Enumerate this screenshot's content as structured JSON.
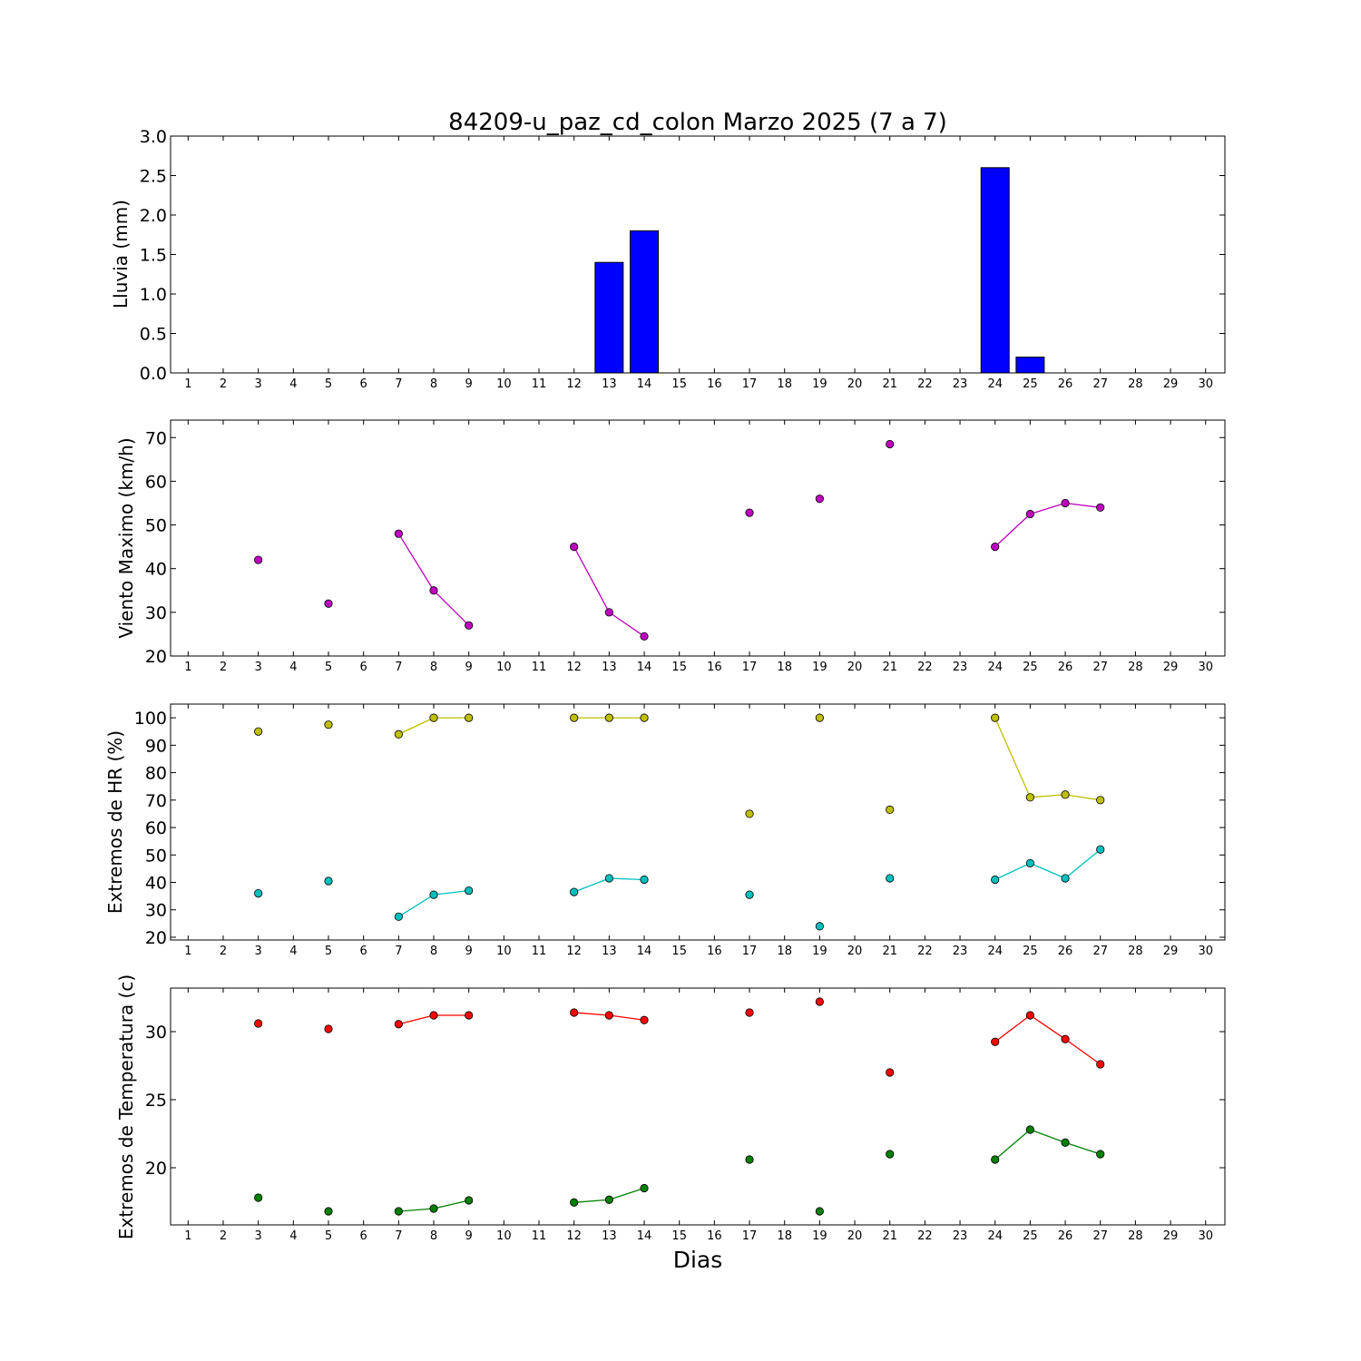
{
  "chart_data": [
    {
      "type": "bar",
      "title": "84209-u_paz_cd_colon Marzo 2025  (7 a 7)",
      "ylabel": "Lluvia (mm)",
      "ylim": [
        0,
        3.0
      ],
      "yticks": [
        "0.0",
        "0.5",
        "1.0",
        "1.5",
        "2.0",
        "2.5",
        "3.0"
      ],
      "xticks": [
        "1",
        "2",
        "3",
        "4",
        "5",
        "6",
        "7",
        "8",
        "9",
        "10",
        "11",
        "12",
        "13",
        "14",
        "15",
        "16",
        "17",
        "18",
        "19",
        "20",
        "21",
        "22",
        "23",
        "24",
        "25",
        "26",
        "27",
        "28",
        "29",
        "30"
      ],
      "colors": {
        "bar": "#0000ff"
      },
      "x": [
        3,
        5,
        7,
        8,
        9,
        12,
        13,
        14,
        17,
        19,
        21,
        24,
        25,
        26,
        27
      ],
      "values": [
        0,
        0,
        0,
        0,
        0,
        0,
        1.4,
        1.8,
        0,
        0,
        0,
        2.6,
        0.2,
        0,
        0
      ]
    },
    {
      "type": "line",
      "ylabel": "Viento Maximo (km/h)",
      "ylim": [
        20,
        74
      ],
      "yticks": [
        "20",
        "30",
        "40",
        "50",
        "60",
        "70"
      ],
      "xticks": [
        "1",
        "2",
        "3",
        "4",
        "5",
        "6",
        "7",
        "8",
        "9",
        "10",
        "11",
        "12",
        "13",
        "14",
        "15",
        "16",
        "17",
        "18",
        "19",
        "20",
        "21",
        "22",
        "23",
        "24",
        "25",
        "26",
        "27",
        "28",
        "29",
        "30"
      ],
      "series": [
        {
          "color": "#bf00bf",
          "x": [
            3,
            5,
            7,
            8,
            9,
            12,
            13,
            14,
            17,
            19,
            21,
            24,
            25,
            26,
            27
          ],
          "y": [
            42,
            32,
            48,
            35,
            27,
            45,
            30,
            24.5,
            52.8,
            56,
            68.5,
            45,
            52.5,
            55,
            54
          ]
        }
      ]
    },
    {
      "type": "line",
      "ylabel": "Extremos de HR (%)",
      "ylim": [
        19,
        105
      ],
      "yticks": [
        "20",
        "30",
        "40",
        "50",
        "60",
        "70",
        "80",
        "90",
        "100"
      ],
      "xticks": [
        "1",
        "2",
        "3",
        "4",
        "5",
        "6",
        "7",
        "8",
        "9",
        "10",
        "11",
        "12",
        "13",
        "14",
        "15",
        "16",
        "17",
        "18",
        "19",
        "20",
        "21",
        "22",
        "23",
        "24",
        "25",
        "26",
        "27",
        "28",
        "29",
        "30"
      ],
      "series": [
        {
          "color": "#bfbf00",
          "x": [
            3,
            5,
            7,
            8,
            9,
            12,
            13,
            14,
            17,
            19,
            21,
            24,
            25,
            26,
            27
          ],
          "y": [
            95,
            97.5,
            94,
            100,
            100,
            100,
            100,
            100,
            65,
            100,
            66.5,
            100,
            71,
            72,
            70
          ]
        },
        {
          "color": "#00bfbf",
          "x": [
            3,
            5,
            7,
            8,
            9,
            12,
            13,
            14,
            17,
            19,
            21,
            24,
            25,
            26,
            27
          ],
          "y": [
            36,
            40.5,
            27.5,
            35.5,
            37,
            36.5,
            41.5,
            41,
            35.5,
            24,
            41.5,
            41,
            47,
            41.5,
            52
          ]
        }
      ]
    },
    {
      "type": "line",
      "ylabel": "Extremos de Temperatura (c)",
      "xlabel": "Dias",
      "ylim": [
        15.8,
        33.2
      ],
      "yticks": [
        "20",
        "25",
        "30"
      ],
      "ytick_values": [
        20,
        25,
        30
      ],
      "xticks": [
        "1",
        "2",
        "3",
        "4",
        "5",
        "6",
        "7",
        "8",
        "9",
        "10",
        "11",
        "12",
        "13",
        "14",
        "15",
        "16",
        "17",
        "18",
        "19",
        "20",
        "21",
        "22",
        "23",
        "24",
        "25",
        "26",
        "27",
        "28",
        "29",
        "30"
      ],
      "series": [
        {
          "color": "#ff0000",
          "x": [
            3,
            5,
            7,
            8,
            9,
            12,
            13,
            14,
            17,
            19,
            21,
            24,
            25,
            26,
            27
          ],
          "y": [
            30.6,
            30.2,
            30.55,
            31.2,
            31.2,
            31.4,
            31.2,
            30.85,
            31.4,
            32.2,
            27,
            29.25,
            31.2,
            29.45,
            27.6
          ]
        },
        {
          "color": "#008000",
          "x": [
            3,
            5,
            7,
            8,
            9,
            12,
            13,
            14,
            17,
            19,
            21,
            24,
            25,
            26,
            27
          ],
          "y": [
            17.8,
            16.8,
            16.8,
            17.0,
            17.6,
            17.45,
            17.65,
            18.5,
            20.6,
            16.8,
            21.0,
            20.6,
            22.8,
            21.85,
            21.0
          ]
        }
      ]
    }
  ]
}
